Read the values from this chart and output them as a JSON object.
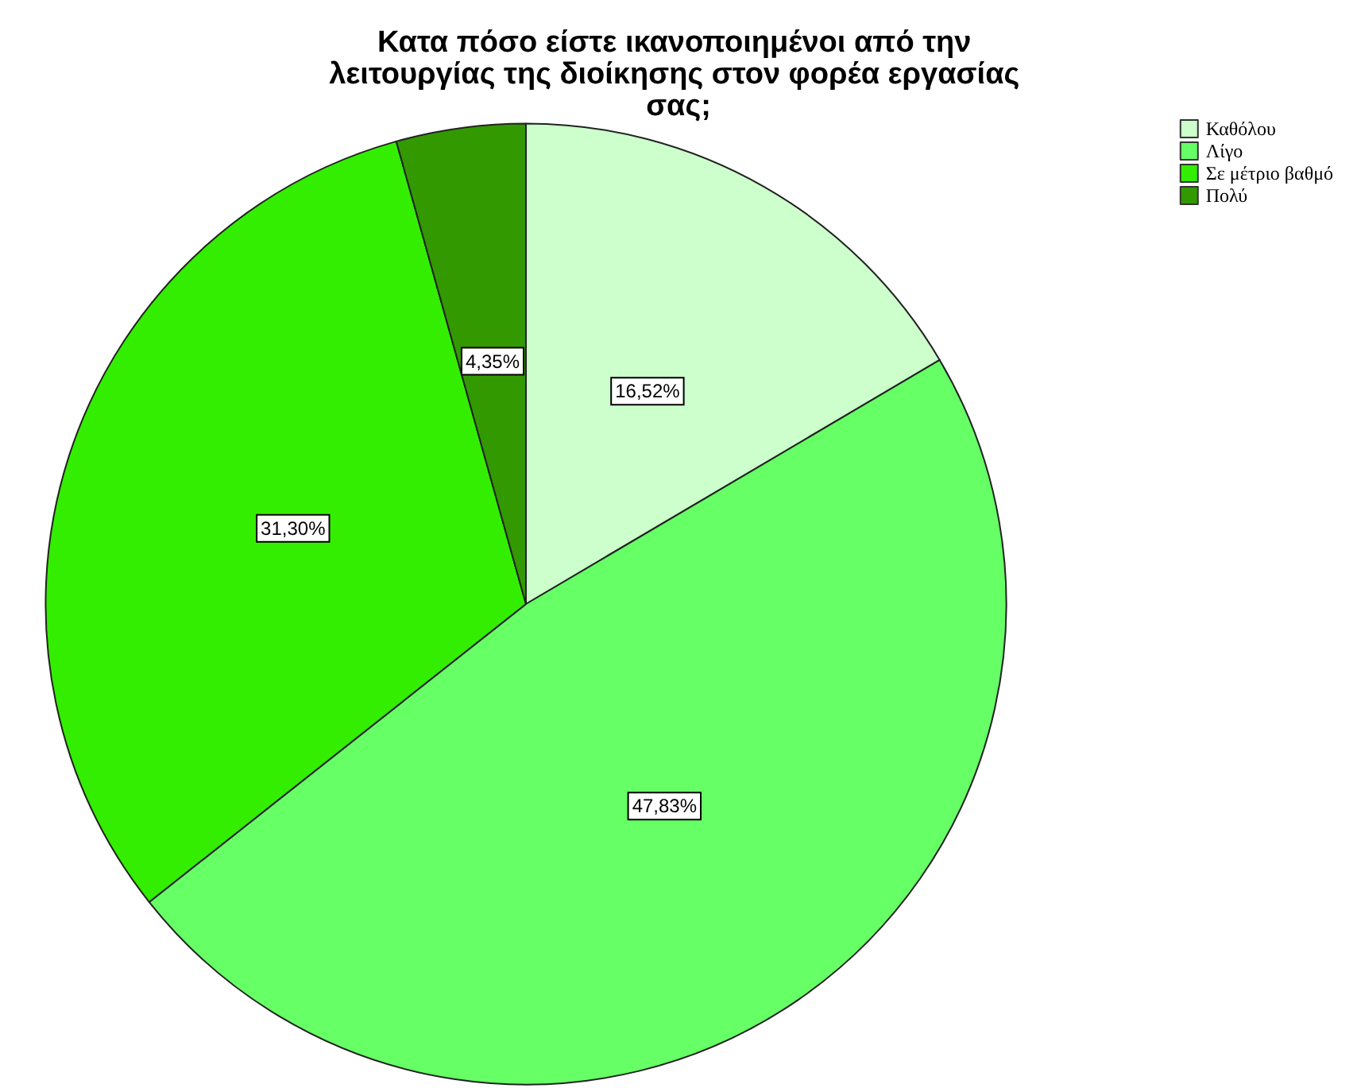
{
  "chart_data": {
    "type": "pie",
    "title": "Κατα πόσο είστε ικανοποιημένοι από την λειτουργίας της διοίκησης στον φορέα εργασίας σας;",
    "categories": [
      "Καθόλου",
      "Λίγο",
      "Σε μέτριο βαθμό",
      "Πολύ"
    ],
    "values": [
      16.52,
      47.83,
      31.3,
      4.35
    ],
    "value_labels": [
      "16,52%",
      "47,83%",
      "31,30%",
      "4,35%"
    ],
    "colors": [
      "#ccffcc",
      "#66ff66",
      "#33ee00",
      "#339900"
    ],
    "legend": "top right"
  }
}
